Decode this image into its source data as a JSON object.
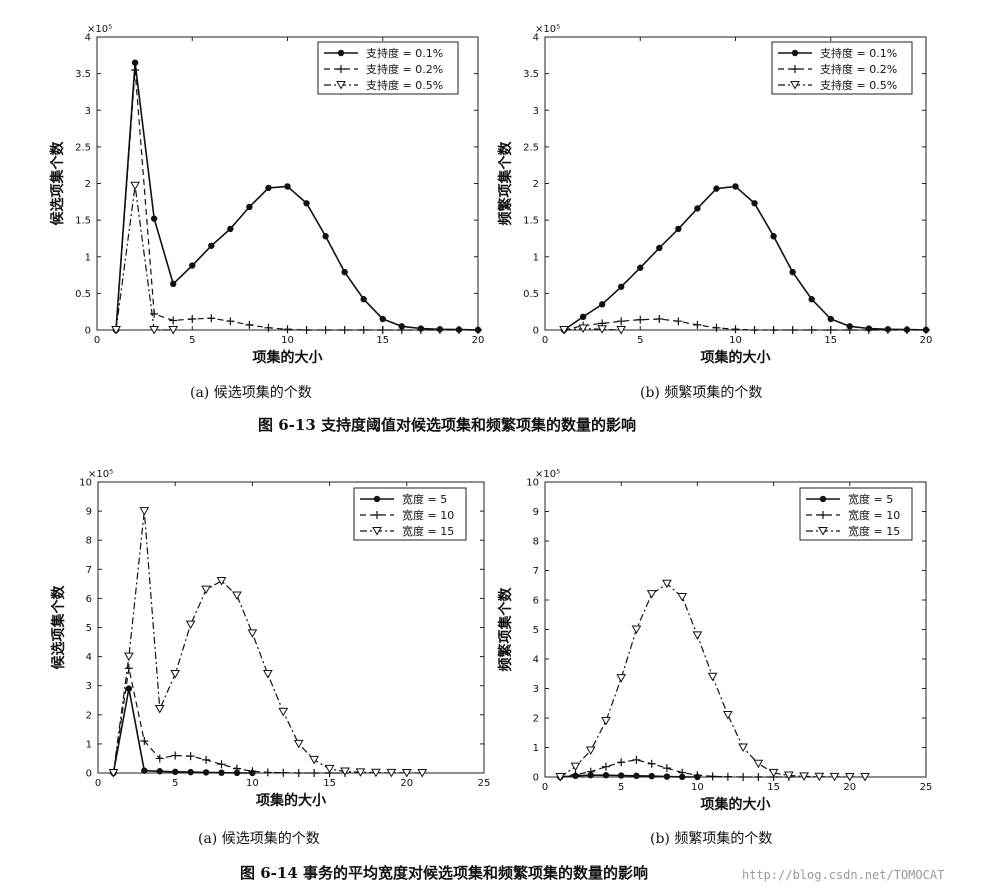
{
  "figure_6_13": {
    "caption": "图 6-13 支持度阈值对候选项集和频繁项集的数量的影响",
    "subcaption_a": "(a) 候选项集的个数",
    "subcaption_b": "(b) 频繁项集的个数"
  },
  "figure_6_14": {
    "caption": "图 6-14 事务的平均宽度对候选项集和频繁项集的数量的影响",
    "subcaption_a": "(a) 候选项集的个数",
    "subcaption_b": "(b) 频繁项集的个数"
  },
  "watermark": "http://blog.csdn.net/TOMOCAT",
  "chart_data": [
    {
      "id": "fig613a",
      "type": "line",
      "xlabel": "项集的大小",
      "ylabel": "候选项集个数",
      "multiplier": "×10⁵",
      "xlim": [
        0,
        20
      ],
      "ylim": [
        0,
        4
      ],
      "xticks": [
        0,
        5,
        10,
        15,
        20
      ],
      "yticks": [
        0,
        0.5,
        1,
        1.5,
        2,
        2.5,
        3,
        3.5,
        4
      ],
      "legend_position": "top-right",
      "series": [
        {
          "name": "支持度 = 0.1%",
          "style": "solid-dot",
          "x": [
            1,
            2,
            3,
            4,
            5,
            6,
            7,
            8,
            9,
            10,
            11,
            12,
            13,
            14,
            15,
            16,
            17,
            18,
            19,
            20
          ],
          "y": [
            0,
            3.65,
            1.52,
            0.63,
            0.88,
            1.15,
            1.38,
            1.68,
            1.94,
            1.96,
            1.73,
            1.28,
            0.79,
            0.42,
            0.15,
            0.05,
            0.02,
            0.01,
            0.005,
            0.002
          ]
        },
        {
          "name": "支持度 = 0.2%",
          "style": "dash-plus",
          "x": [
            1,
            2,
            3,
            4,
            5,
            6,
            7,
            8,
            9,
            10,
            11,
            12,
            13,
            14,
            15,
            16,
            17,
            18,
            19,
            20
          ],
          "y": [
            0,
            3.55,
            0.22,
            0.13,
            0.15,
            0.16,
            0.12,
            0.07,
            0.03,
            0.01,
            0,
            0,
            0,
            0,
            0,
            0,
            0,
            0,
            0,
            0
          ]
        },
        {
          "name": "支持度 = 0.5%",
          "style": "dashdot-triangle",
          "x": [
            1,
            2,
            3,
            4
          ],
          "y": [
            0,
            1.97,
            0,
            0
          ]
        }
      ]
    },
    {
      "id": "fig613b",
      "type": "line",
      "xlabel": "项集的大小",
      "ylabel": "频繁项集个数",
      "multiplier": "×10⁵",
      "xlim": [
        0,
        20
      ],
      "ylim": [
        0,
        4
      ],
      "xticks": [
        0,
        5,
        10,
        15,
        20
      ],
      "yticks": [
        0,
        0.5,
        1,
        1.5,
        2,
        2.5,
        3,
        3.5,
        4
      ],
      "legend_position": "top-right",
      "series": [
        {
          "name": "支持度 = 0.1%",
          "style": "solid-dot",
          "x": [
            1,
            2,
            3,
            4,
            5,
            6,
            7,
            8,
            9,
            10,
            11,
            12,
            13,
            14,
            15,
            16,
            17,
            18,
            19,
            20
          ],
          "y": [
            0,
            0.18,
            0.35,
            0.59,
            0.85,
            1.12,
            1.38,
            1.66,
            1.93,
            1.96,
            1.73,
            1.28,
            0.79,
            0.42,
            0.15,
            0.05,
            0.02,
            0.01,
            0.005,
            0.002
          ]
        },
        {
          "name": "支持度 = 0.2%",
          "style": "dash-plus",
          "x": [
            1,
            2,
            3,
            4,
            5,
            6,
            7,
            8,
            9,
            10,
            11,
            12,
            13,
            14,
            15,
            16,
            17,
            18,
            19,
            20
          ],
          "y": [
            0,
            0.06,
            0.09,
            0.12,
            0.14,
            0.15,
            0.12,
            0.07,
            0.03,
            0.01,
            0,
            0,
            0,
            0,
            0,
            0,
            0,
            0,
            0,
            0
          ]
        },
        {
          "name": "支持度 = 0.5%",
          "style": "dashdot-triangle",
          "x": [
            1,
            2,
            3,
            4
          ],
          "y": [
            0,
            0.02,
            0.01,
            0
          ]
        }
      ]
    },
    {
      "id": "fig614a",
      "type": "line",
      "xlabel": "项集的大小",
      "ylabel": "候选项集个数",
      "multiplier": "×10⁵",
      "xlim": [
        0,
        25
      ],
      "ylim": [
        0,
        10
      ],
      "xticks": [
        0,
        5,
        10,
        15,
        20,
        25
      ],
      "yticks": [
        0,
        1,
        2,
        3,
        4,
        5,
        6,
        7,
        8,
        9,
        10
      ],
      "legend_position": "top-right",
      "series": [
        {
          "name": "宽度 = 5",
          "style": "solid-dot",
          "x": [
            1,
            2,
            3,
            4,
            5,
            6,
            7,
            8,
            9,
            10
          ],
          "y": [
            0,
            2.9,
            0.08,
            0.06,
            0.04,
            0.03,
            0.02,
            0.01,
            0.005,
            0
          ]
        },
        {
          "name": "宽度 = 10",
          "style": "dash-plus",
          "x": [
            1,
            2,
            3,
            4,
            5,
            6,
            7,
            8,
            9,
            10,
            11,
            12,
            13,
            14,
            15,
            16
          ],
          "y": [
            0,
            3.6,
            1.1,
            0.5,
            0.6,
            0.58,
            0.45,
            0.3,
            0.15,
            0.06,
            0.02,
            0.01,
            0,
            0,
            0,
            0
          ]
        },
        {
          "name": "宽度 = 15",
          "style": "dashdot-triangle",
          "x": [
            1,
            2,
            3,
            4,
            5,
            6,
            7,
            8,
            9,
            10,
            11,
            12,
            13,
            14,
            15,
            16,
            17,
            18,
            19,
            20,
            21
          ],
          "y": [
            0,
            4.0,
            9.0,
            2.2,
            3.4,
            5.1,
            6.3,
            6.6,
            6.1,
            4.8,
            3.4,
            2.1,
            1.0,
            0.45,
            0.14,
            0.05,
            0.02,
            0.01,
            0.005,
            0.002,
            0.001
          ]
        }
      ]
    },
    {
      "id": "fig614b",
      "type": "line",
      "xlabel": "项集的大小",
      "ylabel": "频繁项集个数",
      "multiplier": "×10⁵",
      "xlim": [
        0,
        25
      ],
      "ylim": [
        0,
        10
      ],
      "xticks": [
        0,
        5,
        10,
        15,
        20,
        25
      ],
      "yticks": [
        0,
        1,
        2,
        3,
        4,
        5,
        6,
        7,
        8,
        9,
        10
      ],
      "legend_position": "top-right",
      "series": [
        {
          "name": "宽度 = 5",
          "style": "solid-dot",
          "x": [
            1,
            2,
            3,
            4,
            5,
            6,
            7,
            8,
            9,
            10
          ],
          "y": [
            0,
            0.04,
            0.06,
            0.06,
            0.05,
            0.04,
            0.03,
            0.015,
            0.005,
            0
          ]
        },
        {
          "name": "宽度 = 10",
          "style": "dash-plus",
          "x": [
            1,
            2,
            3,
            4,
            5,
            6,
            7,
            8,
            9,
            10,
            11,
            12,
            13,
            14,
            15,
            16
          ],
          "y": [
            0,
            0.08,
            0.18,
            0.35,
            0.5,
            0.58,
            0.45,
            0.3,
            0.15,
            0.06,
            0.02,
            0.01,
            0,
            0,
            0,
            0
          ]
        },
        {
          "name": "宽度 = 15",
          "style": "dashdot-triangle",
          "x": [
            1,
            2,
            3,
            4,
            5,
            6,
            7,
            8,
            9,
            10,
            11,
            12,
            13,
            14,
            15,
            16,
            17,
            18,
            19,
            20,
            21
          ],
          "y": [
            0,
            0.35,
            0.9,
            1.9,
            3.35,
            5.0,
            6.2,
            6.55,
            6.1,
            4.8,
            3.4,
            2.1,
            1.0,
            0.45,
            0.14,
            0.05,
            0.02,
            0.01,
            0.005,
            0.002,
            0.001
          ]
        }
      ]
    }
  ]
}
